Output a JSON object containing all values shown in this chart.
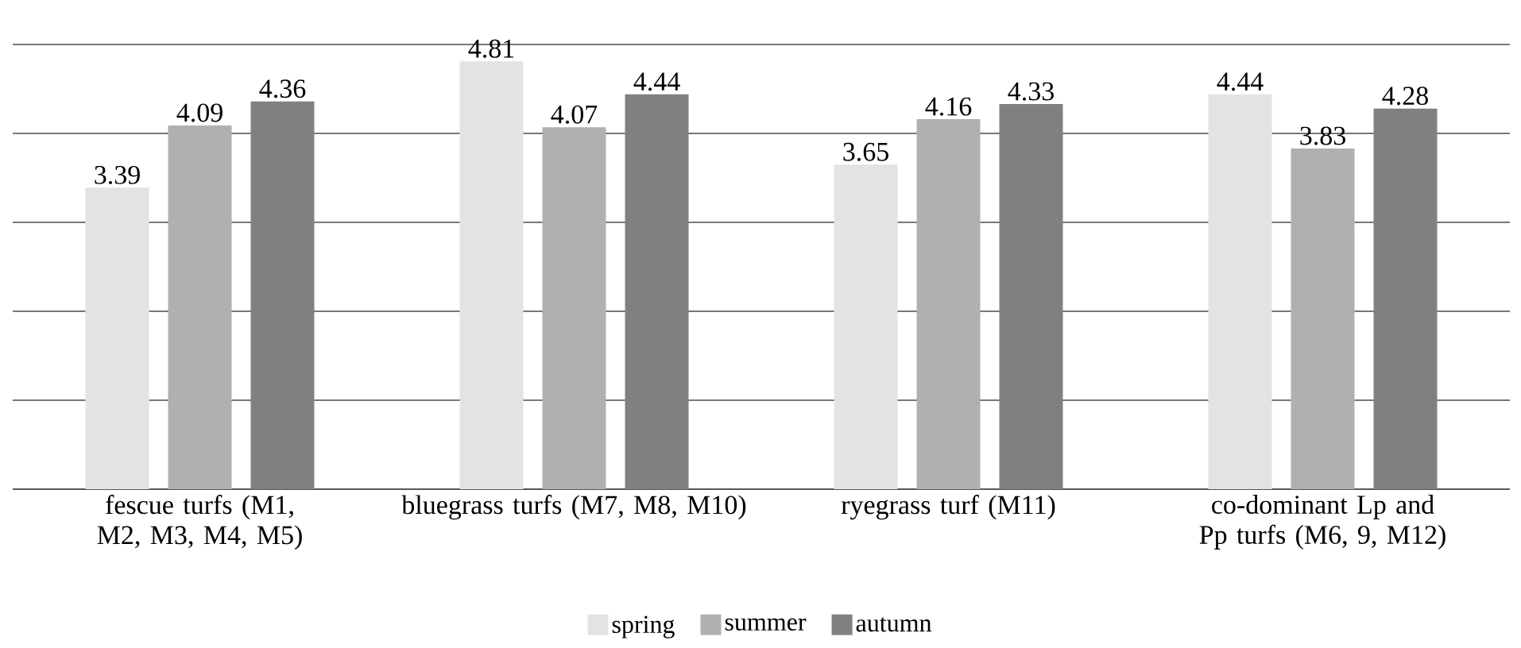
{
  "chart_data": {
    "type": "bar",
    "categories": [
      "fescue turfs (M1, M2, M3, M4, M5)",
      "bluegrass turfs (M7, M8, M10)",
      "ryegrass turf (M11)",
      "co-dominant Lp and Pp turfs (M6, 9, M12)"
    ],
    "series": [
      {
        "name": "spring",
        "color": "#e3e3e3",
        "values": [
          3.39,
          4.81,
          3.65,
          4.44
        ]
      },
      {
        "name": "summer",
        "color": "#b0b0b0",
        "values": [
          4.09,
          4.07,
          4.16,
          3.83
        ]
      },
      {
        "name": "autumn",
        "color": "#808080",
        "values": [
          4.36,
          4.44,
          4.33,
          4.28
        ]
      }
    ],
    "ylim": [
      0,
      5
    ],
    "yticks": [
      {
        "value": 0,
        "label": null
      },
      {
        "value": 1,
        "label": null
      },
      {
        "value": 2,
        "label": null
      },
      {
        "value": 3,
        "label": null
      },
      {
        "value": 4,
        "label": null
      },
      {
        "value": 5,
        "label": null
      }
    ],
    "grid": "y",
    "legend": "bottom",
    "tick_labels": "x",
    "data_labels": true
  }
}
